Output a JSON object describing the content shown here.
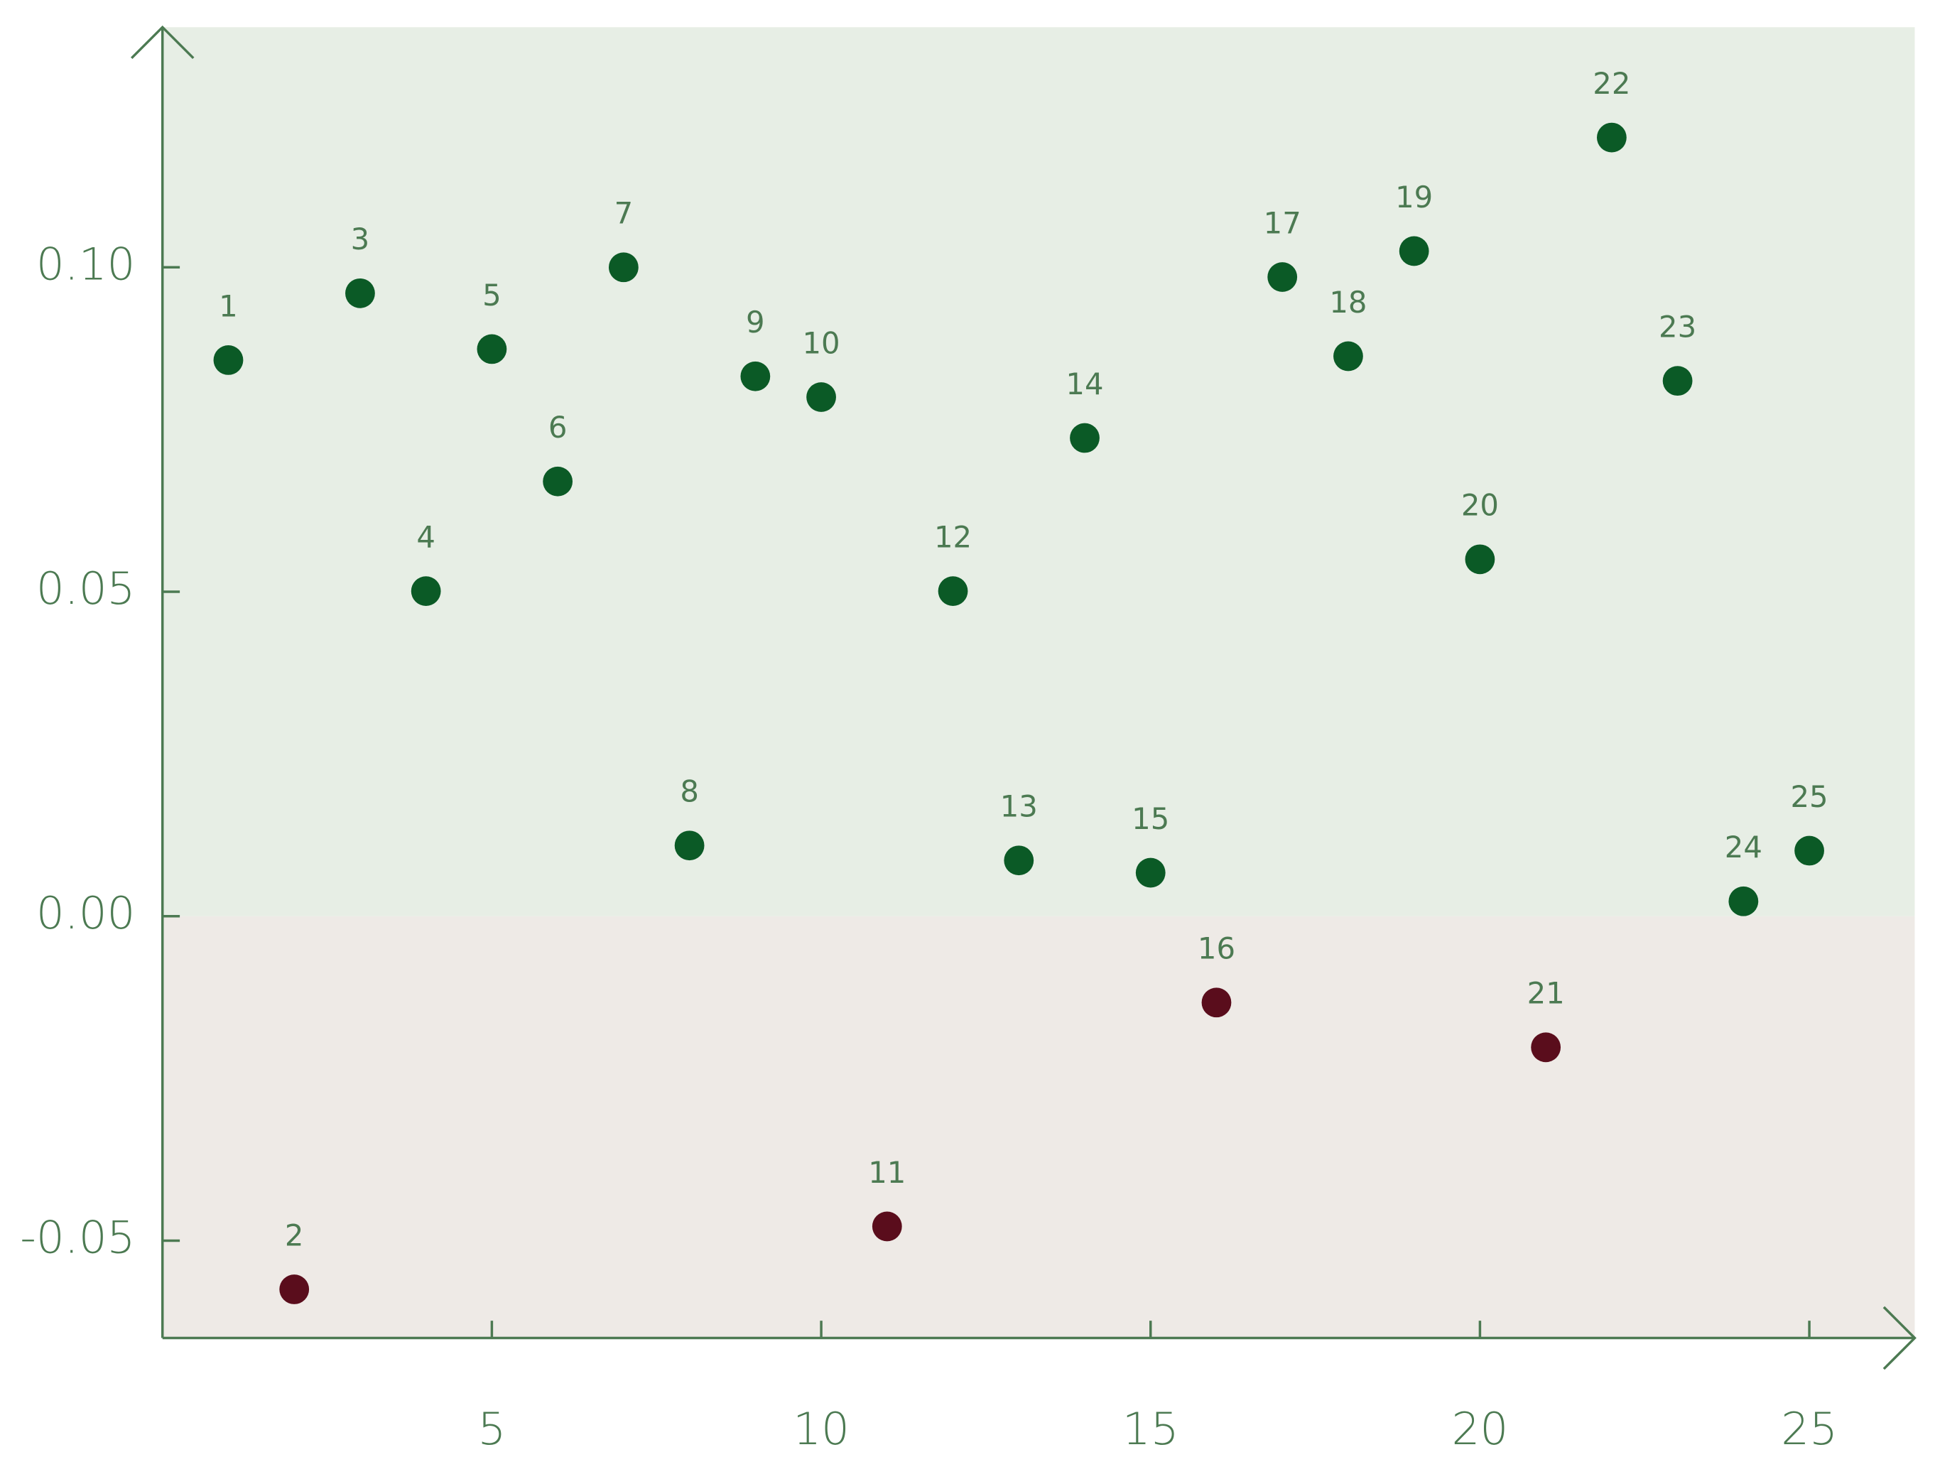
{
  "chart_data": {
    "type": "scatter",
    "x": [
      1,
      2,
      3,
      4,
      5,
      6,
      7,
      8,
      9,
      10,
      11,
      12,
      13,
      14,
      15,
      16,
      17,
      18,
      19,
      20,
      21,
      22,
      23,
      24,
      25
    ],
    "values": [
      0.0857,
      -0.0575,
      0.096,
      0.0501,
      0.0874,
      0.067,
      0.1,
      0.0109,
      0.0832,
      0.08,
      -0.0478,
      0.0501,
      0.0086,
      0.0737,
      0.0067,
      -0.0133,
      0.0985,
      0.0863,
      0.1025,
      0.055,
      -0.0202,
      0.12,
      0.0825,
      0.0023,
      0.0101
    ],
    "positive_color": "#0b5a26",
    "negative_color": "#5a0d1c",
    "positive_fill": "#e7eee5",
    "negative_fill": "#eeeae6",
    "xlim": [
      0,
      26.6
    ],
    "ylim": [
      -0.065,
      0.137
    ],
    "xticks": [
      5,
      10,
      15,
      20,
      25
    ],
    "yticks": [
      -0.05,
      {
        "value": 0,
        "label": "0.00"
      },
      0.05,
      {
        "value": 0.1,
        "label": "0.10"
      }
    ],
    "grid": false
  }
}
